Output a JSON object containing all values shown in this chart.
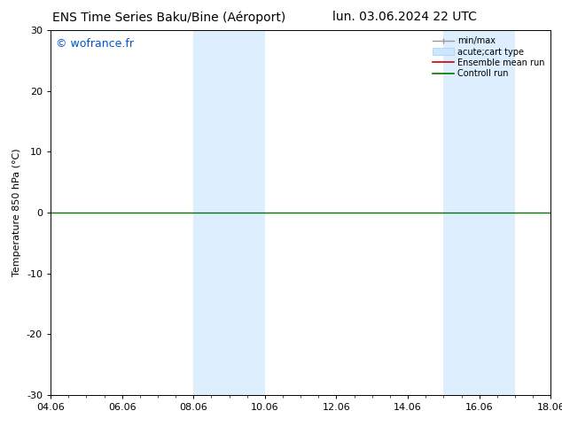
{
  "title_left": "ENS Time Series Baku/Bine (Aéroport)",
  "title_right": "lun. 03.06.2024 22 UTC",
  "ylabel": "Temperature 850 hPa (°C)",
  "ylim": [
    -30,
    30
  ],
  "yticks": [
    -30,
    -20,
    -10,
    0,
    10,
    20,
    30
  ],
  "xtick_labels": [
    "04.06",
    "06.06",
    "08.06",
    "10.06",
    "12.06",
    "14.06",
    "16.06",
    "18.06"
  ],
  "xtick_positions": [
    0,
    2,
    4,
    6,
    8,
    10,
    12,
    14
  ],
  "bg_color": "#ffffff",
  "plot_bg_color": "#ffffff",
  "watermark": "© wofrance.fr",
  "watermark_color": "#0055cc",
  "zero_line_color": "#007700",
  "zero_line_y": 0,
  "shade_regions": [
    {
      "x_start": 4,
      "x_end": 6,
      "color": "#ddeeff"
    },
    {
      "x_start": 11,
      "x_end": 13,
      "color": "#ddeeff"
    }
  ],
  "title_fontsize": 10,
  "tick_fontsize": 8,
  "ylabel_fontsize": 8,
  "watermark_fontsize": 9,
  "border_color": "#000000",
  "legend_fontsize": 7
}
